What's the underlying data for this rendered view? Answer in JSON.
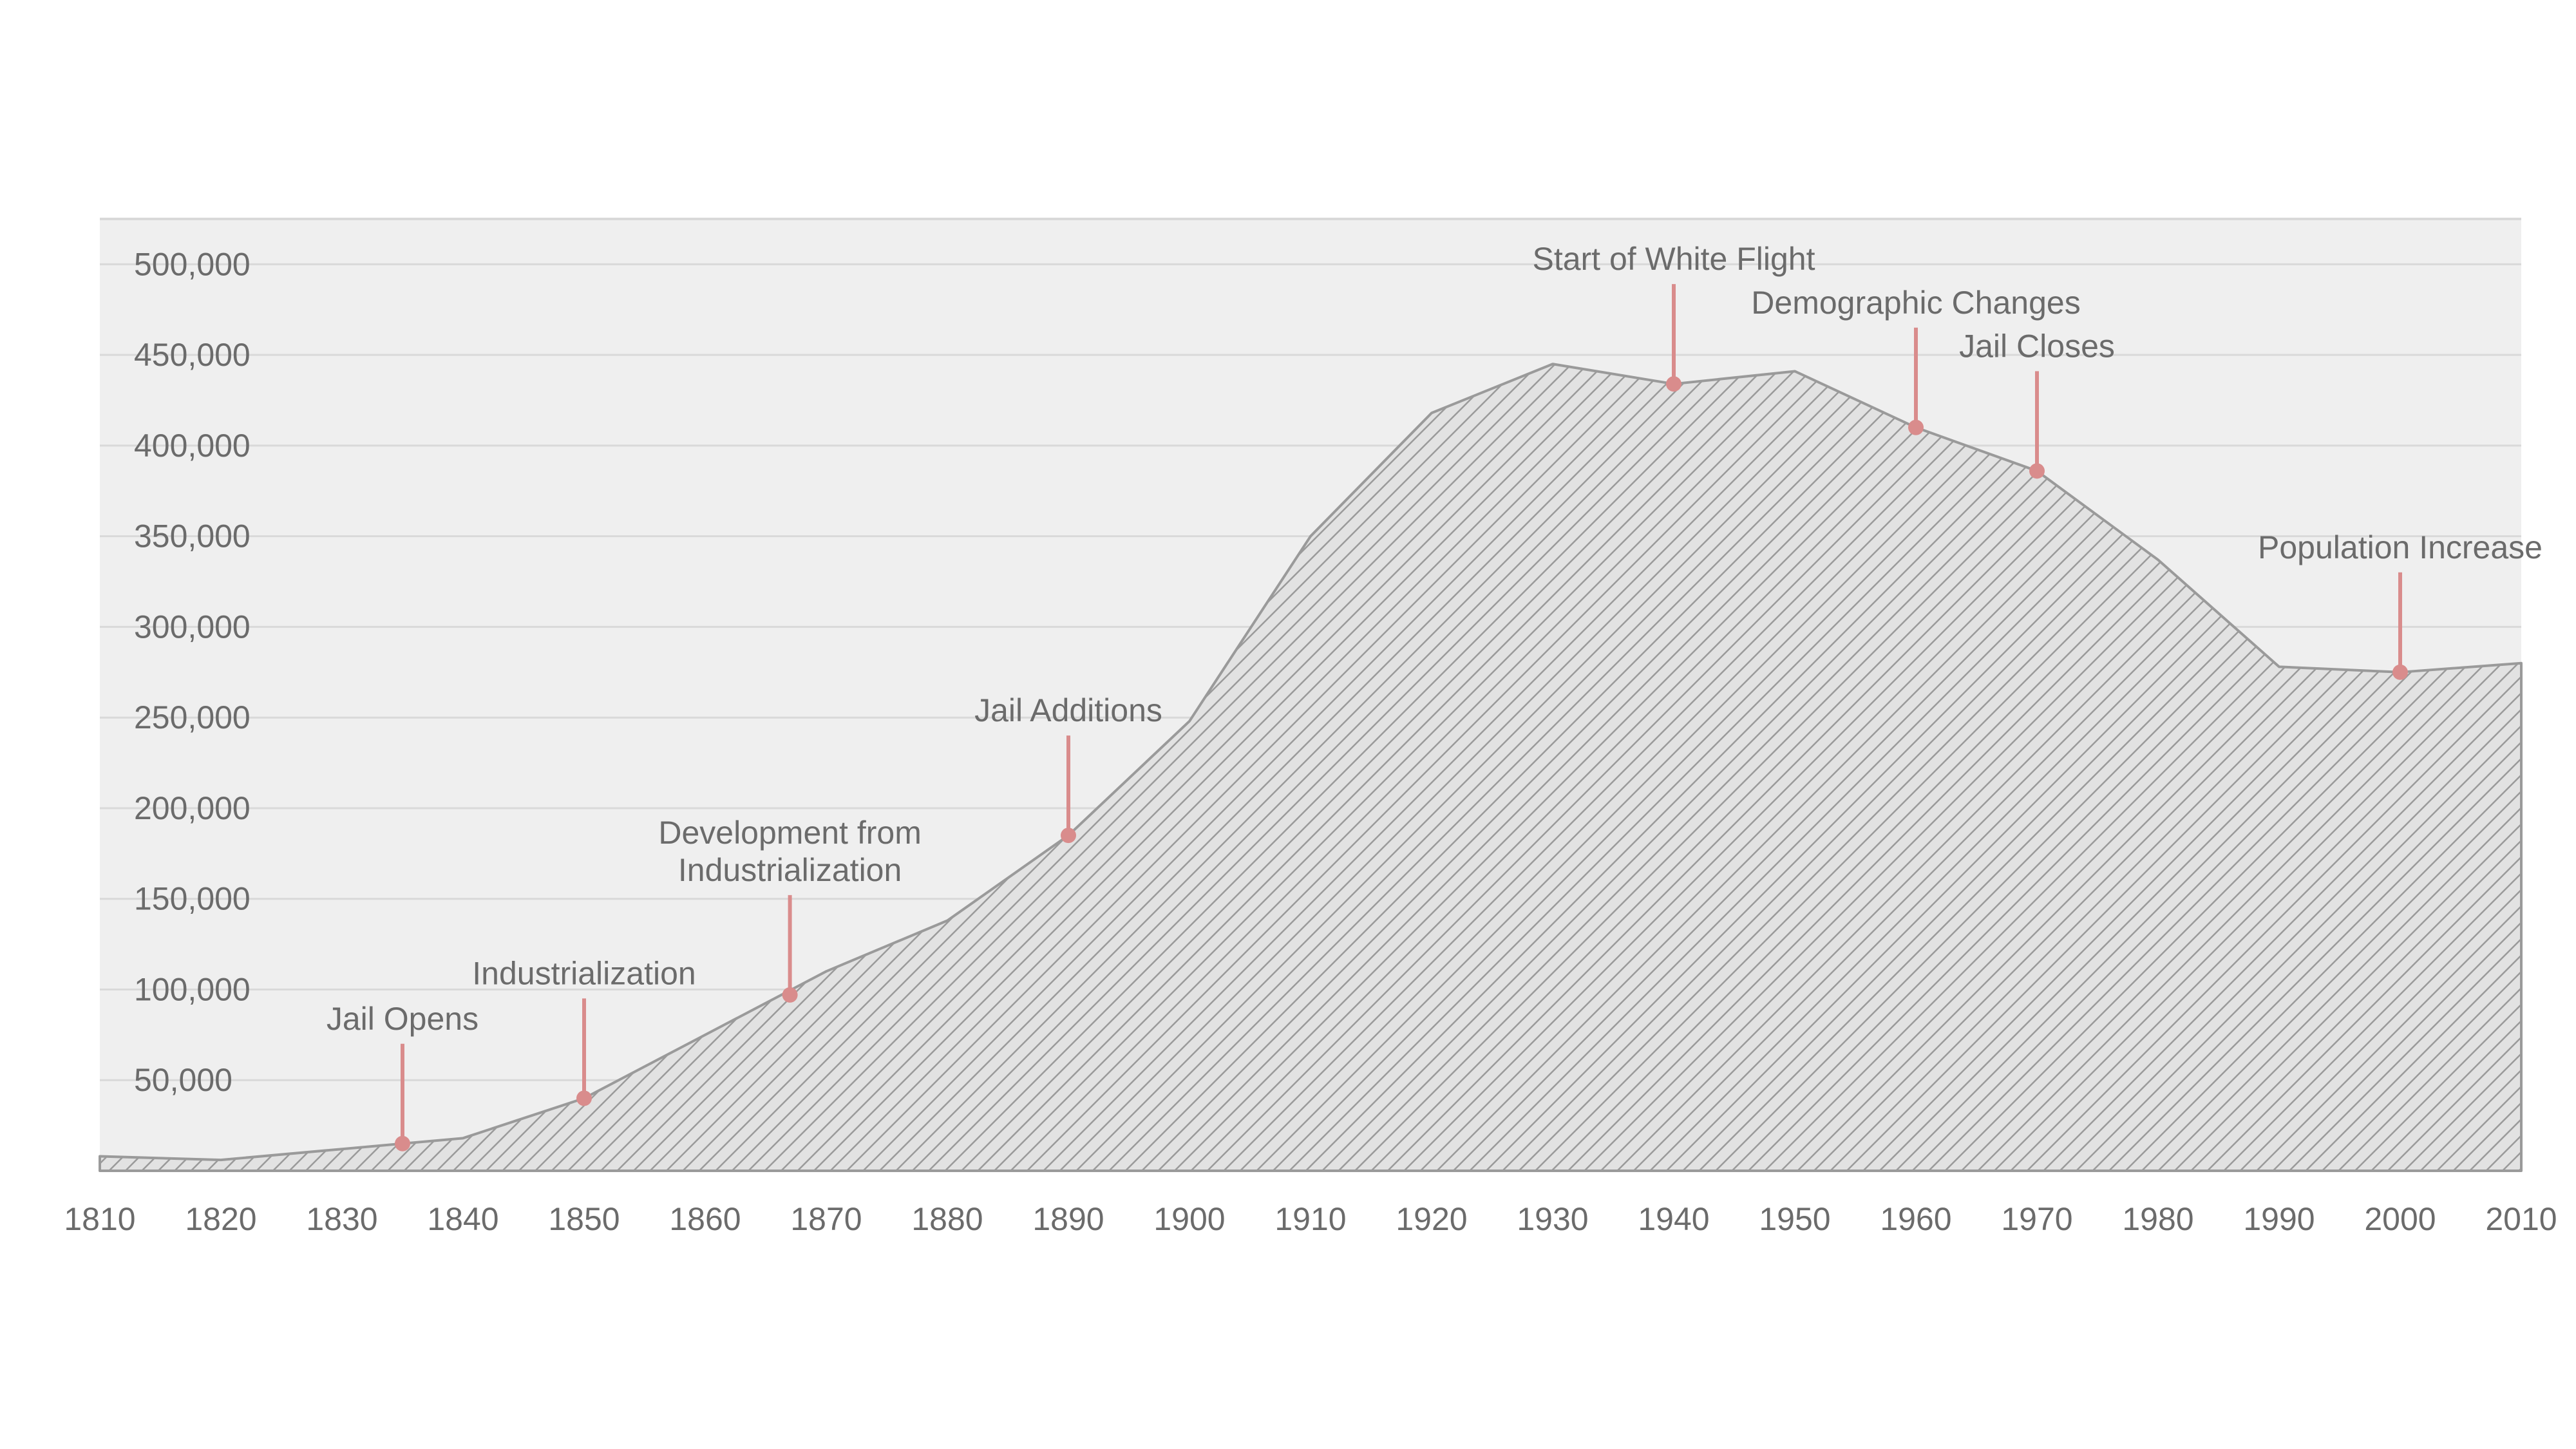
{
  "chart_data": {
    "type": "area",
    "title": "",
    "xlabel": "",
    "ylabel": "",
    "xlim": [
      1810,
      2010
    ],
    "ylim": [
      0,
      525000
    ],
    "grid": true,
    "x_ticks": [
      "1810",
      "1820",
      "1830",
      "1840",
      "1850",
      "1860",
      "1870",
      "1880",
      "1890",
      "1900",
      "1910",
      "1920",
      "1930",
      "1940",
      "1950",
      "1960",
      "1970",
      "1980",
      "1990",
      "2000",
      "2010"
    ],
    "y_ticks": [
      {
        "value": 50000,
        "label": "50,000"
      },
      {
        "value": 100000,
        "label": "100,000"
      },
      {
        "value": 150000,
        "label": "150,000"
      },
      {
        "value": 200000,
        "label": "200,000"
      },
      {
        "value": 250000,
        "label": "250,000"
      },
      {
        "value": 300000,
        "label": "300,000"
      },
      {
        "value": 350000,
        "label": "350,000"
      },
      {
        "value": 400000,
        "label": "400,000"
      },
      {
        "value": 450000,
        "label": "450,000"
      },
      {
        "value": 500000,
        "label": "500,000"
      }
    ],
    "x": [
      1810,
      1820,
      1830,
      1840,
      1850,
      1860,
      1870,
      1880,
      1890,
      1900,
      1910,
      1920,
      1930,
      1940,
      1950,
      1960,
      1970,
      1980,
      1990,
      2000,
      2010
    ],
    "values": [
      8000,
      6000,
      12000,
      18000,
      40000,
      75000,
      110000,
      138000,
      185000,
      248000,
      350000,
      418000,
      445000,
      434000,
      441000,
      410000,
      386000,
      337000,
      278000,
      275000,
      280000
    ],
    "colors": {
      "fill_hatch": "#9a9a9a",
      "fill_background": "#e2e2e2",
      "outline": "#9a9a9a",
      "plot_background": "#efefef",
      "gridline": "#d9d9d9",
      "annotation": "#d98c8c"
    },
    "annotations": [
      {
        "label": [
          "Jail Opens"
        ],
        "x": 1835,
        "y": 15000
      },
      {
        "label": [
          "Industrialization"
        ],
        "x": 1850,
        "y": 40000
      },
      {
        "label": [
          "Development from",
          "Industrialization"
        ],
        "x": 1867,
        "y": 97000
      },
      {
        "label": [
          "Jail Additions"
        ],
        "x": 1890,
        "y": 185000
      },
      {
        "label": [
          "Start of White Flight"
        ],
        "x": 1940,
        "y": 434000
      },
      {
        "label": [
          "Demographic Changes"
        ],
        "x": 1960,
        "y": 410000
      },
      {
        "label": [
          "Jail Closes"
        ],
        "x": 1970,
        "y": 386000
      },
      {
        "label": [
          "Population Increase"
        ],
        "x": 2000,
        "y": 275000
      }
    ]
  }
}
